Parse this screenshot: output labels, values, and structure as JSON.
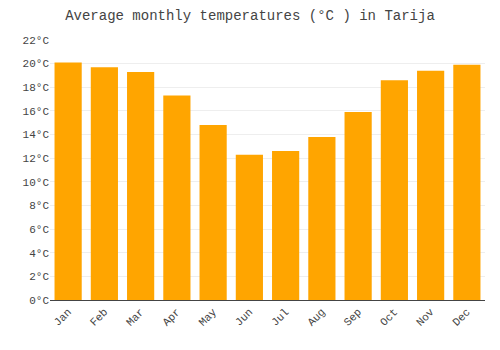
{
  "chart_data": {
    "type": "bar",
    "title": "Average monthly temperatures (°C ) in Tarija",
    "categories": [
      "Jan",
      "Feb",
      "Mar",
      "Apr",
      "May",
      "Jun",
      "Jul",
      "Aug",
      "Sep",
      "Oct",
      "Nov",
      "Dec"
    ],
    "values": [
      20.1,
      19.7,
      19.3,
      17.3,
      14.8,
      12.3,
      12.6,
      13.8,
      15.9,
      18.6,
      19.4,
      19.9
    ],
    "color": "#FFA500",
    "ylim": [
      0,
      22
    ],
    "yticks": [
      {
        "value": 0,
        "label": "0°C"
      },
      {
        "value": 2,
        "label": "2°C"
      },
      {
        "value": 4,
        "label": "4°C"
      },
      {
        "value": 6,
        "label": "6°C"
      },
      {
        "value": 8,
        "label": "8°C"
      },
      {
        "value": 10,
        "label": "10°C"
      },
      {
        "value": 12,
        "label": "12°C"
      },
      {
        "value": 14,
        "label": "14°C"
      },
      {
        "value": 16,
        "label": "16°C"
      },
      {
        "value": 18,
        "label": "18°C"
      },
      {
        "value": 20,
        "label": "20°C"
      },
      {
        "value": 22,
        "label": "22°C"
      }
    ],
    "grid": true
  }
}
